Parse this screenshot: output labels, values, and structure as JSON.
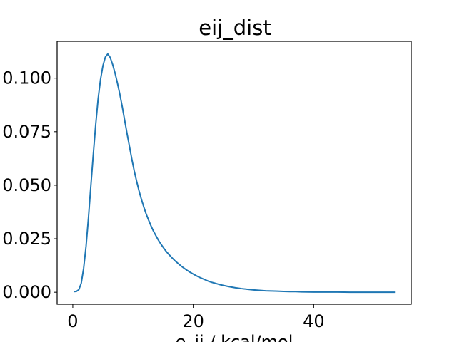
{
  "chart_data": {
    "type": "line",
    "title": "eij_dist",
    "xlabel": "e_ij / kcal/mol",
    "ylabel": "",
    "xlim": [
      -2.6,
      56.2
    ],
    "ylim": [
      -0.0056,
      0.1172
    ],
    "grid": false,
    "legend": "none",
    "x_ticks": [
      0,
      20,
      40
    ],
    "x_tick_labels": [
      "0",
      "20",
      "40"
    ],
    "y_ticks": [
      0.0,
      0.025,
      0.05,
      0.075,
      0.1
    ],
    "y_tick_labels": [
      "0.000",
      "0.025",
      "0.050",
      "0.075",
      "0.100"
    ],
    "series": [
      {
        "color": "#1f77b4",
        "x": [
          0.2,
          0.6,
          1.0,
          1.4,
          1.8,
          2.2,
          2.6,
          3.0,
          3.4,
          3.8,
          4.2,
          4.6,
          5.0,
          5.4,
          5.8,
          6.2,
          6.6,
          7.0,
          7.4,
          7.8,
          8.2,
          8.6,
          9.0,
          9.4,
          9.8,
          10.2,
          10.6,
          11.0,
          11.4,
          11.8,
          12.2,
          12.6,
          13.0,
          13.4,
          13.8,
          14.2,
          14.6,
          15.0,
          15.5,
          16.0,
          16.5,
          17.0,
          17.5,
          18.0,
          18.5,
          19.0,
          19.5,
          20.0,
          20.5,
          21.0,
          21.5,
          22.0,
          22.5,
          23.0,
          23.5,
          24.0,
          24.5,
          25.0,
          25.5,
          26.0,
          27.0,
          28.0,
          29.0,
          30.0,
          31.0,
          32.0,
          33.0,
          34.0,
          35.0,
          36.0,
          37.0,
          38.0,
          40.0,
          42.0,
          44.0,
          46.0,
          48.0,
          50.0,
          52.0,
          53.5
        ],
        "y": [
          0.0003,
          0.0004,
          0.0012,
          0.0042,
          0.0112,
          0.0215,
          0.0348,
          0.0498,
          0.0643,
          0.0782,
          0.0902,
          0.0993,
          0.1058,
          0.1098,
          0.1113,
          0.1097,
          0.1065,
          0.1025,
          0.0978,
          0.0926,
          0.0868,
          0.0805,
          0.0742,
          0.0682,
          0.0622,
          0.0567,
          0.0518,
          0.0473,
          0.0433,
          0.0397,
          0.0364,
          0.0336,
          0.0309,
          0.0285,
          0.0264,
          0.0244,
          0.0226,
          0.021,
          0.0191,
          0.0175,
          0.016,
          0.0146,
          0.0134,
          0.0122,
          0.0112,
          0.0102,
          0.0093,
          0.0085,
          0.0077,
          0.007,
          0.0064,
          0.0058,
          0.0052,
          0.0047,
          0.0043,
          0.0039,
          0.0035,
          0.0032,
          0.0029,
          0.0026,
          0.0021,
          0.0017,
          0.0014,
          0.0011,
          0.0009,
          0.0007,
          0.0006,
          0.0005,
          0.0004,
          0.0003,
          0.0003,
          0.0002,
          0.0001,
          0.0001,
          0.0001,
          0.0,
          0.0,
          0.0,
          0.0,
          0.0
        ]
      }
    ]
  }
}
